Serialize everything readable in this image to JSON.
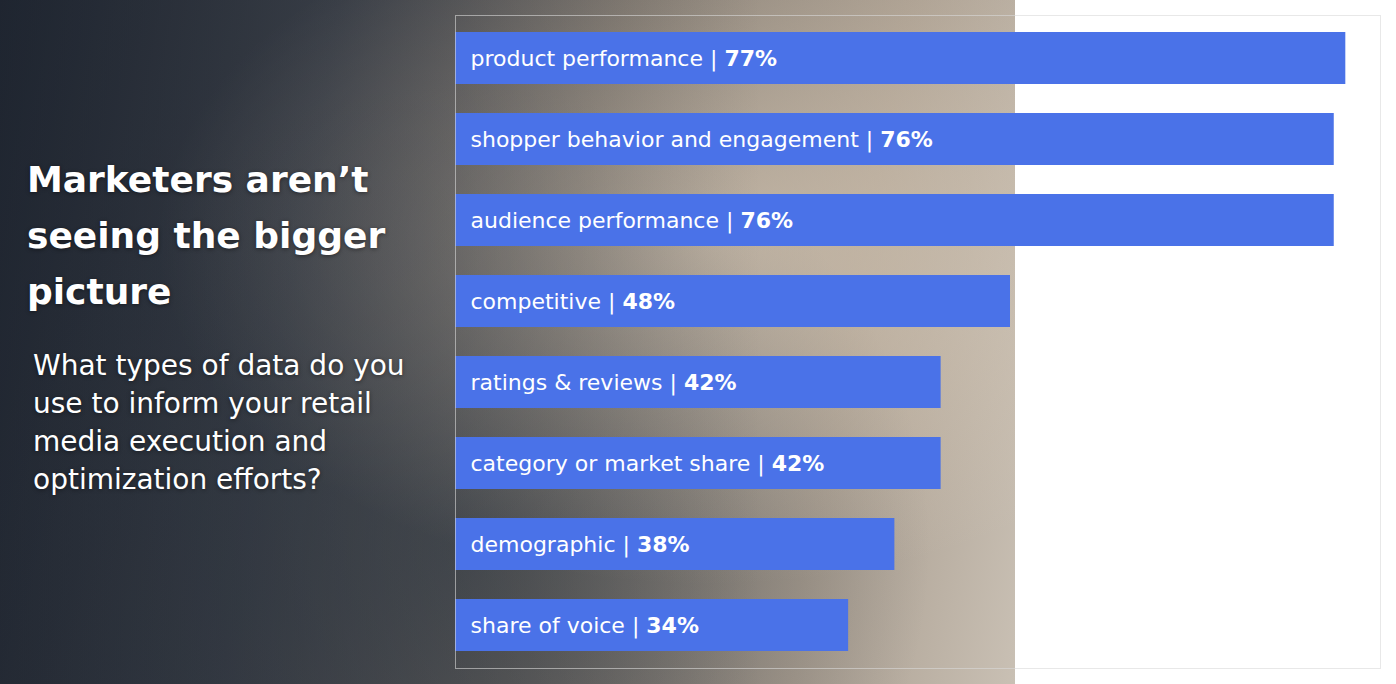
{
  "chart_data": {
    "type": "bar",
    "orientation": "horizontal",
    "title": "Marketers aren’t seeing the bigger picture",
    "subtitle": "What types of data do you use to inform your retail media execution and optimization efforts?",
    "categories": [
      "product performance",
      "shopper behavior and engagement",
      "audience performance",
      "competitive",
      "ratings & reviews",
      "category or market share",
      "demographic",
      "share of voice"
    ],
    "values": [
      77,
      76,
      76,
      48,
      42,
      42,
      38,
      34
    ],
    "value_labels": [
      "77%",
      "76%",
      "76%",
      "48%",
      "42%",
      "42%",
      "38%",
      "34%"
    ],
    "label_separator": "|",
    "color": "#4a72e8",
    "xlim": [
      0,
      80
    ],
    "xticks": [],
    "data_labels": true,
    "tick_labels": false,
    "grid": false
  }
}
